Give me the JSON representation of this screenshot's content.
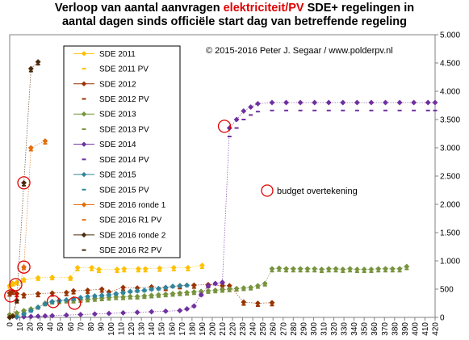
{
  "chart_data": {
    "type": "line",
    "title_parts": [
      {
        "text": "Verloop van aantal aanvragen ",
        "highlight": false
      },
      {
        "text": "elektriciteit/PV",
        "highlight": true
      },
      {
        "text": " SDE+ regelingen in",
        "highlight": false
      }
    ],
    "title_line2": "aantal dagen sinds officiële start dag van betreffende regeling",
    "copyright": "© 2015-2016 Peter J. Segaar / www.polderpv.nl",
    "annotation": "budget overtekening",
    "xlim": [
      0,
      420
    ],
    "ylim": [
      0,
      5000
    ],
    "x_ticks": [
      0,
      10,
      20,
      30,
      40,
      50,
      60,
      70,
      80,
      90,
      100,
      110,
      120,
      130,
      140,
      150,
      160,
      170,
      180,
      190,
      200,
      210,
      220,
      230,
      240,
      250,
      260,
      270,
      280,
      290,
      300,
      310,
      320,
      330,
      340,
      350,
      360,
      370,
      380,
      390,
      400,
      410,
      420
    ],
    "y_ticks": [
      0,
      500,
      1000,
      1500,
      2000,
      2500,
      3000,
      3500,
      4000,
      4500,
      5000
    ],
    "y_tick_labels": [
      "0",
      "500",
      "1.000",
      "1.500",
      "2.000",
      "2.500",
      "3.000",
      "3.500",
      "4.000",
      "4.500",
      "5.000"
    ],
    "series": [
      {
        "name": "SDE 2011",
        "color": "#ffc000",
        "marker": "diamond",
        "line": true,
        "x": [
          0,
          3,
          7,
          14,
          28,
          42,
          60,
          67,
          81,
          88,
          106,
          113,
          127,
          134,
          148,
          162,
          176,
          190
        ],
        "y": [
          560,
          600,
          620,
          670,
          700,
          710,
          700,
          880,
          880,
          850,
          850,
          860,
          860,
          860,
          870,
          880,
          880,
          920
        ]
      },
      {
        "name": "SDE 2011 PV",
        "color": "#ffc000",
        "marker": "dash",
        "line": false,
        "x": [
          0,
          3,
          7,
          14,
          28,
          42,
          60,
          67,
          81,
          88,
          106,
          113,
          127,
          134,
          148,
          162,
          176,
          190
        ],
        "y": [
          520,
          560,
          580,
          630,
          660,
          670,
          660,
          830,
          830,
          800,
          800,
          810,
          810,
          810,
          820,
          830,
          830,
          870
        ]
      },
      {
        "name": "SDE 2012",
        "color": "#993300",
        "marker": "diamond",
        "line": true,
        "x": [
          0,
          3,
          7,
          14,
          28,
          42,
          56,
          63,
          77,
          91,
          98,
          112,
          126,
          140,
          154,
          168,
          182,
          196,
          210,
          217,
          231,
          245,
          259
        ],
        "y": [
          430,
          460,
          420,
          400,
          420,
          430,
          440,
          470,
          480,
          500,
          450,
          530,
          520,
          540,
          530,
          560,
          570,
          580,
          560,
          560,
          270,
          250,
          260
        ]
      },
      {
        "name": "SDE 2012 PV",
        "color": "#993300",
        "marker": "dash",
        "line": false,
        "x": [
          0,
          3,
          7,
          14,
          28,
          42,
          56,
          63,
          77,
          91,
          98,
          112,
          126,
          140,
          154,
          168,
          182,
          196,
          210,
          217,
          231,
          245,
          259
        ],
        "y": [
          380,
          410,
          370,
          350,
          370,
          380,
          390,
          420,
          430,
          450,
          400,
          480,
          470,
          490,
          480,
          510,
          520,
          530,
          510,
          510,
          220,
          200,
          210
        ]
      },
      {
        "name": "SDE 2013",
        "color": "#77933c",
        "marker": "diamond",
        "line": true,
        "x": [
          0,
          7,
          14,
          21,
          28,
          35,
          42,
          49,
          56,
          63,
          70,
          77,
          84,
          91,
          98,
          105,
          112,
          119,
          126,
          133,
          140,
          147,
          154,
          161,
          168,
          175,
          182,
          189,
          196,
          203,
          210,
          217,
          224,
          231,
          238,
          245,
          252,
          259,
          266,
          273,
          280,
          287,
          294,
          301,
          308,
          315,
          322,
          329,
          336,
          343,
          350,
          357,
          364,
          371,
          378,
          385,
          392
        ],
        "y": [
          50,
          80,
          120,
          150,
          180,
          250,
          280,
          290,
          300,
          300,
          310,
          320,
          330,
          340,
          350,
          360,
          360,
          370,
          370,
          380,
          390,
          400,
          410,
          420,
          430,
          440,
          450,
          460,
          470,
          480,
          490,
          500,
          510,
          520,
          530,
          560,
          600,
          860,
          870,
          860,
          860,
          860,
          860,
          860,
          850,
          860,
          860,
          850,
          860,
          850,
          850,
          850,
          860,
          860,
          860,
          860,
          900
        ]
      },
      {
        "name": "SDE 2013 PV",
        "color": "#77933c",
        "marker": "dash",
        "line": false,
        "x": [
          0,
          7,
          14,
          21,
          28,
          35,
          42,
          49,
          56,
          63,
          70,
          77,
          84,
          91,
          98,
          105,
          112,
          119,
          126,
          133,
          140,
          147,
          154,
          161,
          168,
          175,
          182,
          189,
          196,
          203,
          210,
          217,
          224,
          231,
          238,
          245,
          252,
          259,
          266,
          273,
          280,
          287,
          294,
          301,
          308,
          315,
          322,
          329,
          336,
          343,
          350,
          357,
          364,
          371,
          378,
          385,
          392
        ],
        "y": [
          20,
          50,
          90,
          120,
          150,
          210,
          240,
          250,
          260,
          260,
          270,
          280,
          290,
          300,
          310,
          320,
          320,
          330,
          330,
          340,
          350,
          360,
          370,
          380,
          390,
          400,
          410,
          420,
          430,
          440,
          450,
          460,
          470,
          480,
          490,
          520,
          560,
          810,
          820,
          810,
          810,
          810,
          810,
          810,
          800,
          810,
          810,
          800,
          810,
          800,
          800,
          800,
          810,
          810,
          810,
          810,
          850
        ]
      },
      {
        "name": "SDE 2014",
        "color": "#7030a0",
        "marker": "diamond",
        "line": true,
        "x": [
          0,
          7,
          14,
          21,
          28,
          35,
          42,
          56,
          70,
          84,
          98,
          112,
          126,
          140,
          154,
          168,
          175,
          182,
          189,
          196,
          203,
          210,
          217,
          224,
          231,
          238,
          245,
          259,
          273,
          287,
          301,
          315,
          329,
          343,
          357,
          371,
          385,
          399,
          413,
          420
        ],
        "y": [
          0,
          5,
          10,
          15,
          20,
          25,
          30,
          40,
          50,
          60,
          70,
          80,
          90,
          100,
          110,
          120,
          150,
          200,
          400,
          560,
          600,
          620,
          3350,
          3500,
          3650,
          3720,
          3780,
          3800,
          3800,
          3800,
          3800,
          3800,
          3800,
          3800,
          3800,
          3800,
          3800,
          3800,
          3800,
          3800
        ]
      },
      {
        "name": "SDE 2014 PV",
        "color": "#7030a0",
        "marker": "dash",
        "line": false,
        "x": [
          0,
          7,
          14,
          21,
          28,
          35,
          42,
          56,
          70,
          84,
          98,
          112,
          126,
          140,
          154,
          168,
          175,
          182,
          189,
          196,
          203,
          210,
          217,
          224,
          231,
          238,
          245,
          259,
          273,
          287,
          301,
          315,
          329,
          343,
          357,
          371,
          385,
          399,
          413,
          420
        ],
        "y": [
          0,
          0,
          5,
          10,
          15,
          20,
          25,
          35,
          45,
          55,
          65,
          75,
          85,
          95,
          105,
          115,
          140,
          190,
          380,
          540,
          580,
          600,
          3200,
          3350,
          3500,
          3580,
          3640,
          3660,
          3660,
          3660,
          3660,
          3660,
          3660,
          3660,
          3660,
          3660,
          3660,
          3660,
          3660,
          3660
        ]
      },
      {
        "name": "SDE 2015",
        "color": "#31859c",
        "marker": "diamond",
        "line": true,
        "x": [
          0,
          7,
          14,
          21,
          28,
          35,
          42,
          49,
          56,
          63,
          70,
          77,
          84,
          91,
          98,
          105,
          112,
          119,
          126,
          133,
          140,
          147,
          154,
          161,
          168,
          175
        ],
        "y": [
          0,
          10,
          60,
          120,
          180,
          240,
          280,
          300,
          310,
          330,
          350,
          370,
          380,
          390,
          400,
          420,
          440,
          460,
          470,
          480,
          500,
          510,
          530,
          550,
          560,
          570
        ]
      },
      {
        "name": "SDE 2015 PV",
        "color": "#31859c",
        "marker": "dash",
        "line": false,
        "x": [
          0,
          7,
          14,
          21,
          28,
          35,
          42,
          49,
          56,
          63,
          70,
          77,
          84,
          91,
          98,
          105,
          112,
          119,
          126,
          133,
          140,
          147,
          154,
          161,
          168,
          175
        ],
        "y": [
          0,
          5,
          40,
          100,
          160,
          220,
          260,
          280,
          290,
          310,
          330,
          350,
          360,
          370,
          380,
          400,
          420,
          440,
          450,
          460,
          480,
          490,
          510,
          530,
          540,
          550
        ]
      },
      {
        "name": "SDE 2016 ronde 1",
        "color": "#e46c0a",
        "marker": "diamond",
        "line": true,
        "x": [
          0,
          3,
          7,
          14,
          21,
          35
        ],
        "y": [
          0,
          30,
          300,
          890,
          3000,
          3120
        ]
      },
      {
        "name": "SDE 2016 R1 PV",
        "color": "#e46c0a",
        "marker": "dash",
        "line": false,
        "x": [
          0,
          3,
          7,
          14,
          21,
          35
        ],
        "y": [
          0,
          20,
          260,
          850,
          2950,
          3070
        ]
      },
      {
        "name": "SDE 2016 ronde 2",
        "color": "#4a2a0a",
        "marker": "diamond",
        "line": true,
        "x": [
          0,
          3,
          7,
          14,
          21,
          28
        ],
        "y": [
          0,
          20,
          300,
          2380,
          4400,
          4520
        ]
      },
      {
        "name": "SDE 2016 R2 PV",
        "color": "#4a2a0a",
        "marker": "dash",
        "line": false,
        "x": [
          0,
          3,
          7,
          14,
          21,
          28
        ],
        "y": [
          0,
          10,
          260,
          2330,
          4350,
          4470
        ]
      }
    ],
    "budget_circles": [
      {
        "x": 1,
        "y": 380
      },
      {
        "x": 6,
        "y": 580
      },
      {
        "x": 14,
        "y": 890
      },
      {
        "x": 14,
        "y": 2380
      },
      {
        "x": 43,
        "y": 280
      },
      {
        "x": 64,
        "y": 250
      },
      {
        "x": 212,
        "y": 3380
      }
    ],
    "legend_placement": "upper-left",
    "grid": false
  }
}
